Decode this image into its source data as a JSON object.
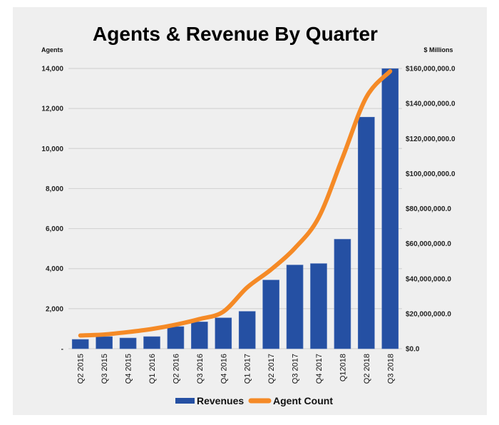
{
  "chart_data": {
    "type": "bar+line",
    "title": "Agents & Revenue By Quarter",
    "categories": [
      "Q2 2015",
      "Q3 2015",
      "Q4 2015",
      "Q1 2016",
      "Q2 2016",
      "Q3 2016",
      "Q4 2016",
      "Q1 2017",
      "Q2 2017",
      "Q3 2017",
      "Q4 2017",
      "Q12018",
      "Q2 2018",
      "Q3 2018"
    ],
    "series": [
      {
        "name": "Revenues",
        "type": "bar",
        "axis": "right",
        "color": "#2550a3",
        "values": [
          5300000,
          6900000,
          6100000,
          6900000,
          12600000,
          15300000,
          17600000,
          21300000,
          39200000,
          47800000,
          48600000,
          62500000,
          132200000,
          159900000
        ]
      },
      {
        "name": "Agent Count",
        "type": "line",
        "axis": "left",
        "color": "#f58a26",
        "values": [
          660,
          710,
          830,
          985,
          1200,
          1480,
          1850,
          3060,
          3950,
          5020,
          6550,
          9530,
          12560,
          13860
        ]
      }
    ],
    "left_axis": {
      "label": "Agents",
      "range": [
        0,
        14000
      ],
      "ticks": [
        0,
        2000,
        4000,
        6000,
        8000,
        10000,
        12000,
        14000
      ],
      "tick_labels": [
        "-",
        "2,000",
        "4,000",
        "6,000",
        "8,000",
        "10,000",
        "12,000",
        "14,000"
      ]
    },
    "right_axis": {
      "label": "$ Millions",
      "range": [
        0,
        160000000
      ],
      "ticks": [
        0,
        20000000,
        40000000,
        60000000,
        80000000,
        100000000,
        120000000,
        140000000,
        160000000
      ],
      "tick_labels": [
        "$0.0",
        "$20,000,000.0",
        "$40,000,000.0",
        "$60,000,000.0",
        "$80,000,000.0",
        "$100,000,000.0",
        "$120,000,000.0",
        "$140,000,000.0",
        "$160,000,000.0"
      ]
    },
    "grid": true,
    "legend": {
      "position": "bottom",
      "entries": [
        "Revenues",
        "Agent Count"
      ]
    }
  }
}
